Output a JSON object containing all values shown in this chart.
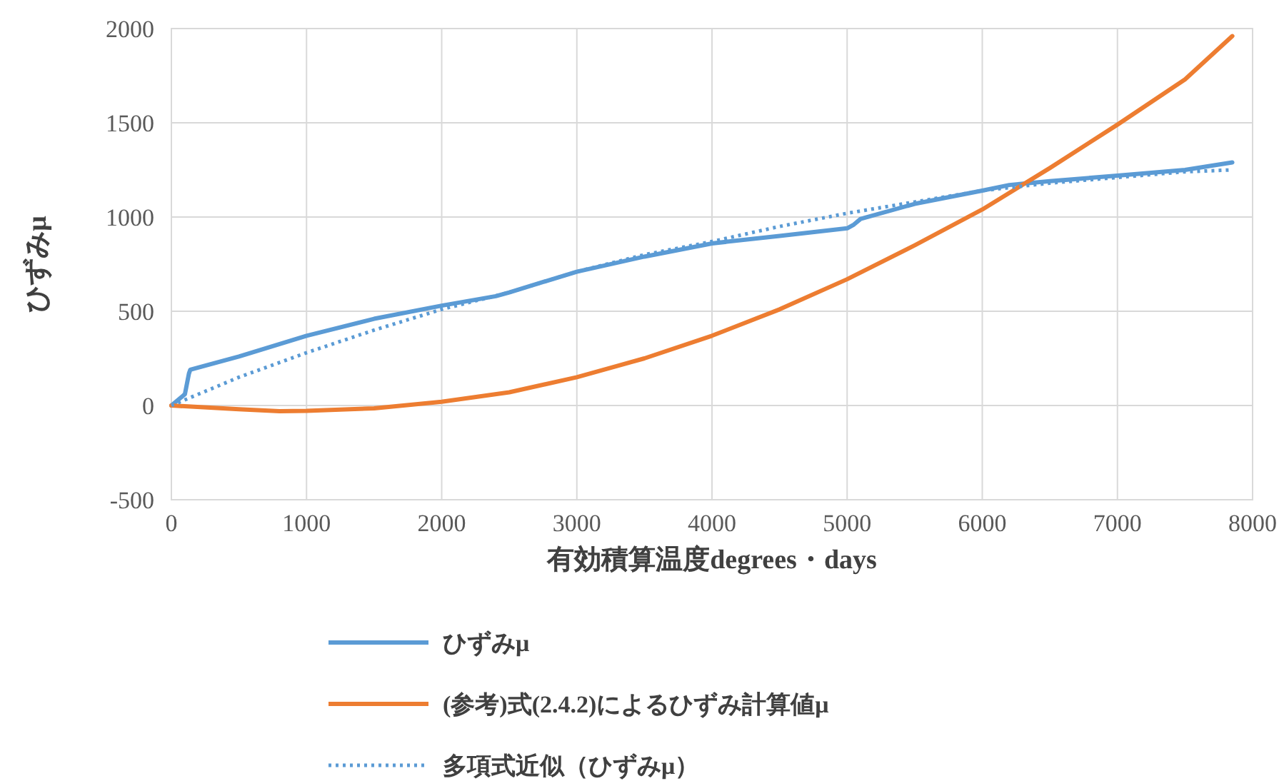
{
  "chart_data": {
    "type": "line",
    "xlabel": "有効積算温度degrees・days",
    "ylabel": "ひずみμ",
    "xlim": [
      0,
      8000
    ],
    "ylim": [
      -500,
      2000
    ],
    "xticks": [
      0,
      1000,
      2000,
      3000,
      4000,
      5000,
      6000,
      7000,
      8000
    ],
    "yticks": [
      -500,
      0,
      500,
      1000,
      1500,
      2000
    ],
    "grid": true,
    "legend": "bottom",
    "series": [
      {
        "name": "ひずみμ",
        "color": "#5b9bd5",
        "line_style": "solid",
        "x": [
          0,
          100,
          130,
          140,
          500,
          1000,
          1500,
          2000,
          2400,
          2500,
          3000,
          3500,
          4000,
          4500,
          5000,
          5050,
          5100,
          5500,
          6000,
          6200,
          6500,
          7000,
          7500,
          7850
        ],
        "values": [
          0,
          60,
          170,
          190,
          260,
          370,
          460,
          530,
          580,
          600,
          710,
          790,
          860,
          900,
          940,
          960,
          990,
          1070,
          1140,
          1170,
          1190,
          1220,
          1250,
          1290
        ]
      },
      {
        "name": "(参考)式(2.4.2)によるひずみ計算値μ",
        "color": "#ed7d31",
        "line_style": "solid",
        "x": [
          0,
          500,
          800,
          1000,
          1500,
          2000,
          2500,
          3000,
          3500,
          4000,
          4500,
          5000,
          5500,
          6000,
          6500,
          7000,
          7500,
          7850
        ],
        "values": [
          0,
          -20,
          -30,
          -28,
          -15,
          20,
          70,
          150,
          250,
          370,
          510,
          670,
          850,
          1040,
          1260,
          1490,
          1730,
          1960
        ]
      },
      {
        "name": "多項式近似（ひずみμ）",
        "color": "#5b9bd5",
        "line_style": "dotted",
        "x": [
          0,
          500,
          1000,
          1500,
          2000,
          2500,
          3000,
          3500,
          4000,
          4500,
          5000,
          5500,
          6000,
          6500,
          7000,
          7500,
          7850
        ],
        "values": [
          0,
          150,
          280,
          400,
          510,
          600,
          710,
          800,
          870,
          950,
          1020,
          1080,
          1140,
          1180,
          1210,
          1240,
          1250
        ]
      }
    ]
  }
}
